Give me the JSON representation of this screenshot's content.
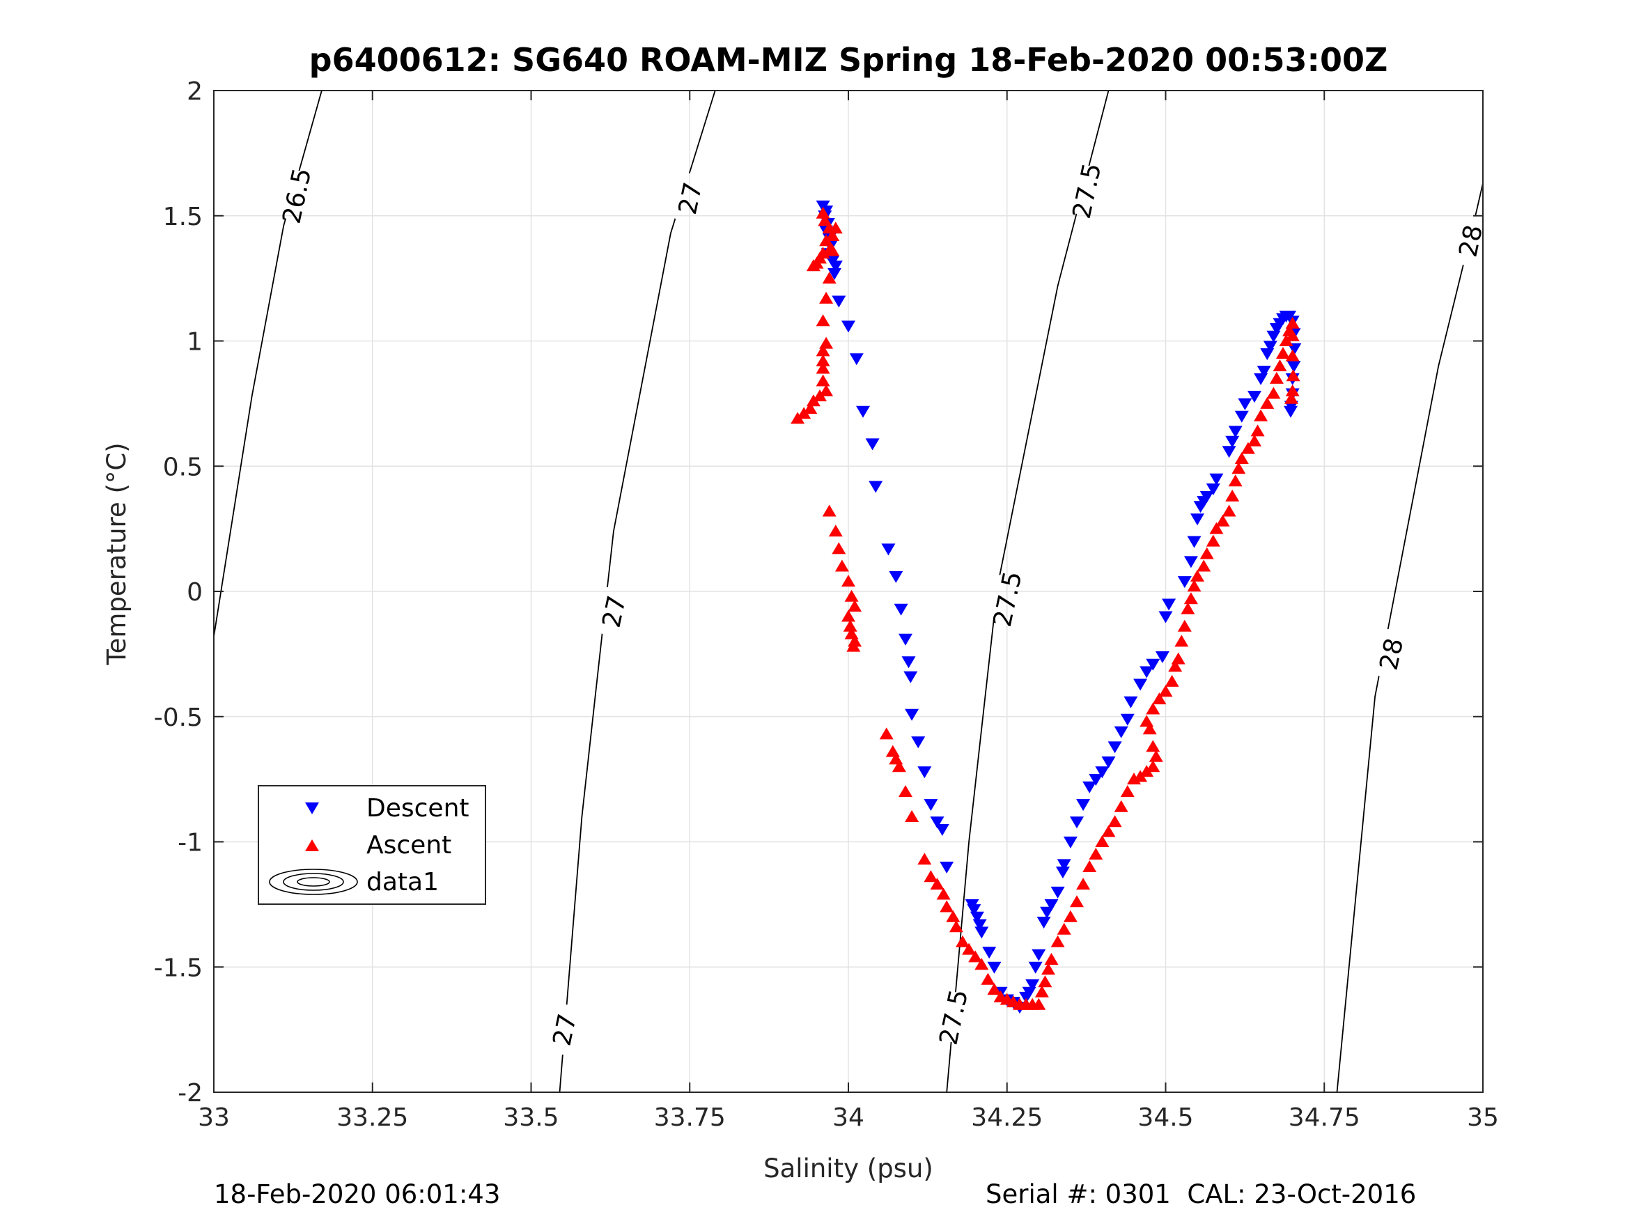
{
  "chart_data": {
    "type": "scatter",
    "title": "p6400612: SG640 ROAM-MIZ Spring 18-Feb-2020 00:53:00Z",
    "xlabel": "Salinity (psu)",
    "ylabel": "Temperature (°C)",
    "xlim": [
      33,
      35
    ],
    "ylim": [
      -2,
      2
    ],
    "x_ticks": [
      33,
      33.25,
      33.5,
      33.75,
      34,
      34.25,
      34.5,
      34.75,
      35
    ],
    "x_tick_labels": [
      "33",
      "33.25",
      "33.5",
      "33.75",
      "34",
      "34.25",
      "34.5",
      "34.75",
      "35"
    ],
    "y_ticks": [
      2,
      1.5,
      1,
      0.5,
      0,
      -0.5,
      -1,
      -1.5,
      -2
    ],
    "y_tick_labels": [
      "2",
      "1.5",
      "1",
      "0.5",
      "0",
      "-0.5",
      "-1",
      "-1.5",
      "-2"
    ],
    "grid": true,
    "legend_position": "lower-left",
    "legend": [
      "Descent",
      "Ascent",
      "data1"
    ],
    "series": [
      {
        "name": "Descent",
        "marker": "triangle-down",
        "color": "#0000ff",
        "points": [
          [
            33.96,
            1.54
          ],
          [
            33.965,
            1.52
          ],
          [
            33.963,
            1.5
          ],
          [
            33.968,
            1.47
          ],
          [
            33.965,
            1.44
          ],
          [
            33.97,
            1.41
          ],
          [
            33.972,
            1.38
          ],
          [
            33.968,
            1.35
          ],
          [
            33.975,
            1.32
          ],
          [
            33.98,
            1.3
          ],
          [
            33.978,
            1.27
          ],
          [
            33.985,
            1.16
          ],
          [
            34.0,
            1.06
          ],
          [
            34.013,
            0.93
          ],
          [
            34.023,
            0.72
          ],
          [
            34.038,
            0.59
          ],
          [
            34.043,
            0.42
          ],
          [
            34.063,
            0.17
          ],
          [
            34.075,
            0.06
          ],
          [
            34.083,
            -0.07
          ],
          [
            34.09,
            -0.19
          ],
          [
            34.095,
            -0.28
          ],
          [
            34.098,
            -0.34
          ],
          [
            34.1,
            -0.49
          ],
          [
            34.11,
            -0.6
          ],
          [
            34.12,
            -0.72
          ],
          [
            34.13,
            -0.85
          ],
          [
            34.14,
            -0.92
          ],
          [
            34.148,
            -0.95
          ],
          [
            34.155,
            -1.1
          ],
          [
            34.195,
            -1.25
          ],
          [
            34.198,
            -1.27
          ],
          [
            34.203,
            -1.3
          ],
          [
            34.207,
            -1.33
          ],
          [
            34.21,
            -1.36
          ],
          [
            34.222,
            -1.44
          ],
          [
            34.23,
            -1.5
          ],
          [
            34.24,
            -1.6
          ],
          [
            34.25,
            -1.63
          ],
          [
            34.26,
            -1.64
          ],
          [
            34.27,
            -1.66
          ],
          [
            34.28,
            -1.62
          ],
          [
            34.285,
            -1.6
          ],
          [
            34.29,
            -1.57
          ],
          [
            34.295,
            -1.5
          ],
          [
            34.3,
            -1.45
          ],
          [
            34.308,
            -1.32
          ],
          [
            34.313,
            -1.28
          ],
          [
            34.32,
            -1.25
          ],
          [
            34.33,
            -1.2
          ],
          [
            34.338,
            -1.12
          ],
          [
            34.34,
            -1.09
          ],
          [
            34.35,
            -1.0
          ],
          [
            34.36,
            -0.92
          ],
          [
            34.37,
            -0.85
          ],
          [
            34.38,
            -0.78
          ],
          [
            34.39,
            -0.75
          ],
          [
            34.4,
            -0.72
          ],
          [
            34.41,
            -0.68
          ],
          [
            34.42,
            -0.62
          ],
          [
            34.43,
            -0.56
          ],
          [
            34.44,
            -0.51
          ],
          [
            34.445,
            -0.44
          ],
          [
            34.46,
            -0.37
          ],
          [
            34.47,
            -0.32
          ],
          [
            34.48,
            -0.29
          ],
          [
            34.495,
            -0.26
          ],
          [
            34.5,
            -0.1
          ],
          [
            34.505,
            -0.05
          ],
          [
            34.53,
            0.04
          ],
          [
            34.54,
            0.12
          ],
          [
            34.545,
            0.2
          ],
          [
            34.55,
            0.29
          ],
          [
            34.555,
            0.34
          ],
          [
            34.56,
            0.36
          ],
          [
            34.565,
            0.38
          ],
          [
            34.575,
            0.41
          ],
          [
            34.58,
            0.45
          ],
          [
            34.6,
            0.56
          ],
          [
            34.605,
            0.6
          ],
          [
            34.61,
            0.64
          ],
          [
            34.62,
            0.7
          ],
          [
            34.625,
            0.75
          ],
          [
            34.64,
            0.78
          ],
          [
            34.65,
            0.85
          ],
          [
            34.655,
            0.88
          ],
          [
            34.66,
            0.95
          ],
          [
            34.665,
            0.98
          ],
          [
            34.67,
            1.02
          ],
          [
            34.675,
            1.05
          ],
          [
            34.68,
            1.07
          ],
          [
            34.685,
            1.09
          ],
          [
            34.69,
            1.1
          ],
          [
            34.695,
            1.1
          ],
          [
            34.7,
            1.08
          ],
          [
            34.702,
            1.03
          ],
          [
            34.703,
            0.97
          ],
          [
            34.702,
            0.9
          ],
          [
            34.7,
            0.85
          ],
          [
            34.7,
            0.79
          ],
          [
            34.698,
            0.74
          ],
          [
            34.697,
            0.72
          ]
        ]
      },
      {
        "name": "Ascent",
        "marker": "triangle-up",
        "color": "#ff0000",
        "points": [
          [
            33.96,
            1.51
          ],
          [
            33.963,
            1.48
          ],
          [
            33.97,
            1.45
          ],
          [
            33.975,
            1.42
          ],
          [
            33.965,
            1.4
          ],
          [
            33.972,
            1.37
          ],
          [
            33.96,
            1.35
          ],
          [
            33.955,
            1.33
          ],
          [
            33.95,
            1.31
          ],
          [
            33.945,
            1.3
          ],
          [
            33.98,
            1.45
          ],
          [
            33.975,
            1.36
          ],
          [
            33.97,
            1.25
          ],
          [
            33.965,
            1.17
          ],
          [
            33.96,
            1.08
          ],
          [
            33.965,
            0.99
          ],
          [
            33.96,
            0.96
          ],
          [
            33.96,
            0.92
          ],
          [
            33.96,
            0.89
          ],
          [
            33.96,
            0.84
          ],
          [
            33.965,
            0.8
          ],
          [
            33.955,
            0.78
          ],
          [
            33.945,
            0.76
          ],
          [
            33.94,
            0.73
          ],
          [
            33.93,
            0.71
          ],
          [
            33.92,
            0.69
          ],
          [
            33.97,
            0.32
          ],
          [
            33.98,
            0.24
          ],
          [
            33.985,
            0.17
          ],
          [
            33.99,
            0.1
          ],
          [
            34.0,
            0.04
          ],
          [
            34.005,
            -0.02
          ],
          [
            34.01,
            -0.06
          ],
          [
            34.0,
            -0.1
          ],
          [
            34.003,
            -0.14
          ],
          [
            34.005,
            -0.17
          ],
          [
            34.01,
            -0.2
          ],
          [
            34.008,
            -0.22
          ],
          [
            34.06,
            -0.57
          ],
          [
            34.07,
            -0.64
          ],
          [
            34.075,
            -0.67
          ],
          [
            34.08,
            -0.7
          ],
          [
            34.09,
            -0.8
          ],
          [
            34.1,
            -0.9
          ],
          [
            34.12,
            -1.07
          ],
          [
            34.13,
            -1.14
          ],
          [
            34.14,
            -1.17
          ],
          [
            34.15,
            -1.21
          ],
          [
            34.155,
            -1.26
          ],
          [
            34.165,
            -1.3
          ],
          [
            34.17,
            -1.34
          ],
          [
            34.18,
            -1.4
          ],
          [
            34.19,
            -1.43
          ],
          [
            34.2,
            -1.46
          ],
          [
            34.21,
            -1.49
          ],
          [
            34.22,
            -1.55
          ],
          [
            34.23,
            -1.59
          ],
          [
            34.24,
            -1.62
          ],
          [
            34.25,
            -1.63
          ],
          [
            34.26,
            -1.64
          ],
          [
            34.27,
            -1.65
          ],
          [
            34.28,
            -1.65
          ],
          [
            34.29,
            -1.65
          ],
          [
            34.3,
            -1.65
          ],
          [
            34.305,
            -1.6
          ],
          [
            34.31,
            -1.56
          ],
          [
            34.315,
            -1.51
          ],
          [
            34.32,
            -1.47
          ],
          [
            34.33,
            -1.4
          ],
          [
            34.34,
            -1.35
          ],
          [
            34.35,
            -1.3
          ],
          [
            34.36,
            -1.24
          ],
          [
            34.37,
            -1.17
          ],
          [
            34.38,
            -1.1
          ],
          [
            34.39,
            -1.05
          ],
          [
            34.4,
            -1.0
          ],
          [
            34.41,
            -0.96
          ],
          [
            34.42,
            -0.92
          ],
          [
            34.43,
            -0.86
          ],
          [
            34.44,
            -0.8
          ],
          [
            34.45,
            -0.75
          ],
          [
            34.46,
            -0.74
          ],
          [
            34.47,
            -0.72
          ],
          [
            34.48,
            -0.7
          ],
          [
            34.485,
            -0.66
          ],
          [
            34.48,
            -0.62
          ],
          [
            34.475,
            -0.55
          ],
          [
            34.47,
            -0.52
          ],
          [
            34.48,
            -0.47
          ],
          [
            34.49,
            -0.43
          ],
          [
            34.5,
            -0.4
          ],
          [
            34.51,
            -0.36
          ],
          [
            34.515,
            -0.3
          ],
          [
            34.52,
            -0.27
          ],
          [
            34.525,
            -0.2
          ],
          [
            34.53,
            -0.14
          ],
          [
            34.535,
            -0.07
          ],
          [
            34.54,
            -0.03
          ],
          [
            34.545,
            0.02
          ],
          [
            34.55,
            0.06
          ],
          [
            34.56,
            0.1
          ],
          [
            34.565,
            0.15
          ],
          [
            34.575,
            0.2
          ],
          [
            34.58,
            0.25
          ],
          [
            34.59,
            0.28
          ],
          [
            34.6,
            0.32
          ],
          [
            34.605,
            0.38
          ],
          [
            34.61,
            0.44
          ],
          [
            34.615,
            0.49
          ],
          [
            34.62,
            0.53
          ],
          [
            34.63,
            0.57
          ],
          [
            34.64,
            0.6
          ],
          [
            34.645,
            0.64
          ],
          [
            34.65,
            0.7
          ],
          [
            34.66,
            0.75
          ],
          [
            34.67,
            0.79
          ],
          [
            34.675,
            0.85
          ],
          [
            34.68,
            0.9
          ],
          [
            34.685,
            0.95
          ],
          [
            34.69,
            1.0
          ],
          [
            34.695,
            1.04
          ],
          [
            34.7,
            1.07
          ],
          [
            34.7,
            1.02
          ],
          [
            34.7,
            0.94
          ],
          [
            34.701,
            0.86
          ],
          [
            34.7,
            0.8
          ],
          [
            34.698,
            0.77
          ]
        ]
      }
    ],
    "contours": [
      {
        "label": "26.5",
        "points": [
          [
            33.0,
            -0.18
          ],
          [
            33.06,
            0.78
          ],
          [
            33.11,
            1.46
          ],
          [
            33.17,
            2.0
          ]
        ],
        "labels_at": [
          [
            33.13,
            1.58
          ]
        ]
      },
      {
        "label": "27",
        "points": [
          [
            33.545,
            -2.0
          ],
          [
            33.58,
            -0.9
          ],
          [
            33.63,
            0.24
          ],
          [
            33.72,
            1.43
          ],
          [
            33.79,
            2.0
          ]
        ],
        "labels_at": [
          [
            33.552,
            -1.75
          ],
          [
            33.63,
            -0.08
          ],
          [
            33.75,
            1.57
          ]
        ]
      },
      {
        "label": "27.5",
        "points": [
          [
            34.155,
            -2.0
          ],
          [
            34.19,
            -1.0
          ],
          [
            34.235,
            0.02
          ],
          [
            34.33,
            1.22
          ],
          [
            34.41,
            2.0
          ]
        ],
        "labels_at": [
          [
            34.165,
            -1.7
          ],
          [
            34.25,
            -0.03
          ],
          [
            34.375,
            1.6
          ]
        ]
      },
      {
        "label": "28",
        "points": [
          [
            34.77,
            -2.0
          ],
          [
            34.83,
            -0.42
          ],
          [
            34.93,
            0.9
          ],
          [
            34.99,
            1.52
          ],
          [
            35.0,
            1.63
          ]
        ],
        "labels_at": [
          [
            34.855,
            -0.25
          ],
          [
            34.98,
            1.4
          ]
        ]
      }
    ]
  },
  "footer": {
    "left": "18-Feb-2020 06:01:43",
    "right": "Serial #: 0301  CAL: 23-Oct-2016"
  }
}
